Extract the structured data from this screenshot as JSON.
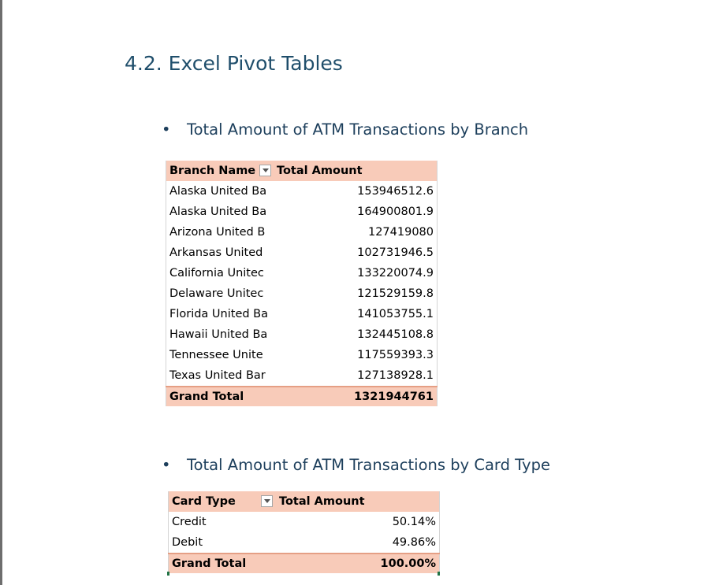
{
  "section": {
    "heading": "4.2. Excel Pivot Tables"
  },
  "bullets": [
    {
      "marker": "•",
      "text": "Total Amount of ATM Transactions by Branch"
    },
    {
      "marker": "•",
      "text": "Total Amount of ATM Transactions by Card Type"
    }
  ],
  "branch_pivot": {
    "header": {
      "col1": "Branch Name",
      "col2": "Total Amount"
    },
    "rows": [
      {
        "name": "Alaska United Ba",
        "value": "153946512.6"
      },
      {
        "name": "Alaska United Ba",
        "value": "164900801.9"
      },
      {
        "name": "Arizona United B",
        "value": "127419080"
      },
      {
        "name": "Arkansas United",
        "value": "102731946.5"
      },
      {
        "name": "California Unitec",
        "value": "133220074.9"
      },
      {
        "name": "Delaware Unitec",
        "value": "121529159.8"
      },
      {
        "name": "Florida United Ba",
        "value": "141053755.1"
      },
      {
        "name": "Hawaii United Ba",
        "value": "132445108.8"
      },
      {
        "name": "Tennessee Unite",
        "value": "117559393.3"
      },
      {
        "name": "Texas United Bar",
        "value": "127138928.1"
      }
    ],
    "total": {
      "label": "Grand Total",
      "value": "1321944761"
    }
  },
  "card_pivot": {
    "header": {
      "col1": "Card Type",
      "col2": "Total Amount"
    },
    "rows": [
      {
        "name": "Credit",
        "value": "50.14%"
      },
      {
        "name": "Debit",
        "value": "49.86%"
      }
    ],
    "total": {
      "label": "Grand Total",
      "value": "100.00%"
    }
  },
  "colors": {
    "heading": "#1f4e6b",
    "pivot_header_fill": "#f8cbb9",
    "pivot_total_border": "#e59f85",
    "selection_accent": "#217346"
  }
}
